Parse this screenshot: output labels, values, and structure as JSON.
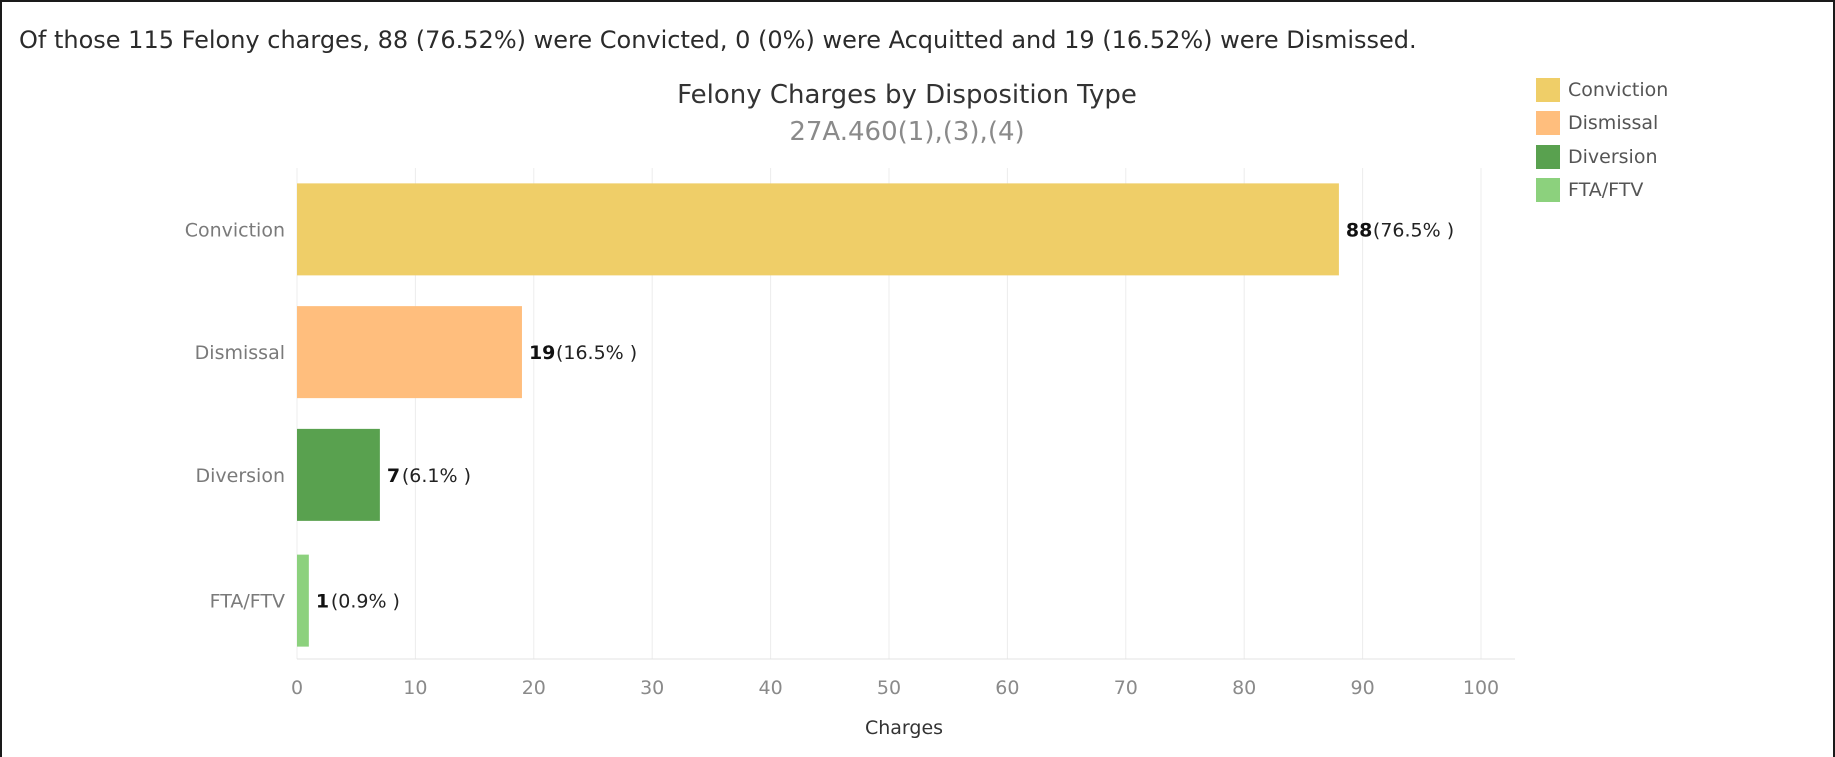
{
  "summary_text": "Of those 115 Felony charges, 88 (76.52%) were Convicted, 0 (0%) were Acquitted and 19 (16.52%) were Dismissed.",
  "chart_data": {
    "type": "bar",
    "orientation": "horizontal",
    "title": "Felony Charges by Disposition Type",
    "subtitle": "27A.460(1),(3),(4)",
    "xlabel": "Charges",
    "ylabel": "",
    "xlim": [
      0,
      100
    ],
    "xticks": [
      0,
      10,
      20,
      30,
      40,
      50,
      60,
      70,
      80,
      90,
      100
    ],
    "grid": true,
    "legend_position": "top-right",
    "categories": [
      "Conviction",
      "Dismissal",
      "Diversion",
      "FTA/FTV"
    ],
    "values": [
      88,
      19,
      7,
      1
    ],
    "percent_labels": [
      "(76.5% )",
      "(16.5% )",
      "(6.1% )",
      "(0.9% )"
    ],
    "colors": [
      "#EFCE68",
      "#FFBE7D",
      "#59A14F",
      "#8CD17D"
    ],
    "legend": [
      {
        "label": "Conviction",
        "color": "#EFCE68"
      },
      {
        "label": "Dismissal",
        "color": "#FFBE7D"
      },
      {
        "label": "Diversion",
        "color": "#59A14F"
      },
      {
        "label": "FTA/FTV",
        "color": "#8CD17D"
      }
    ]
  }
}
